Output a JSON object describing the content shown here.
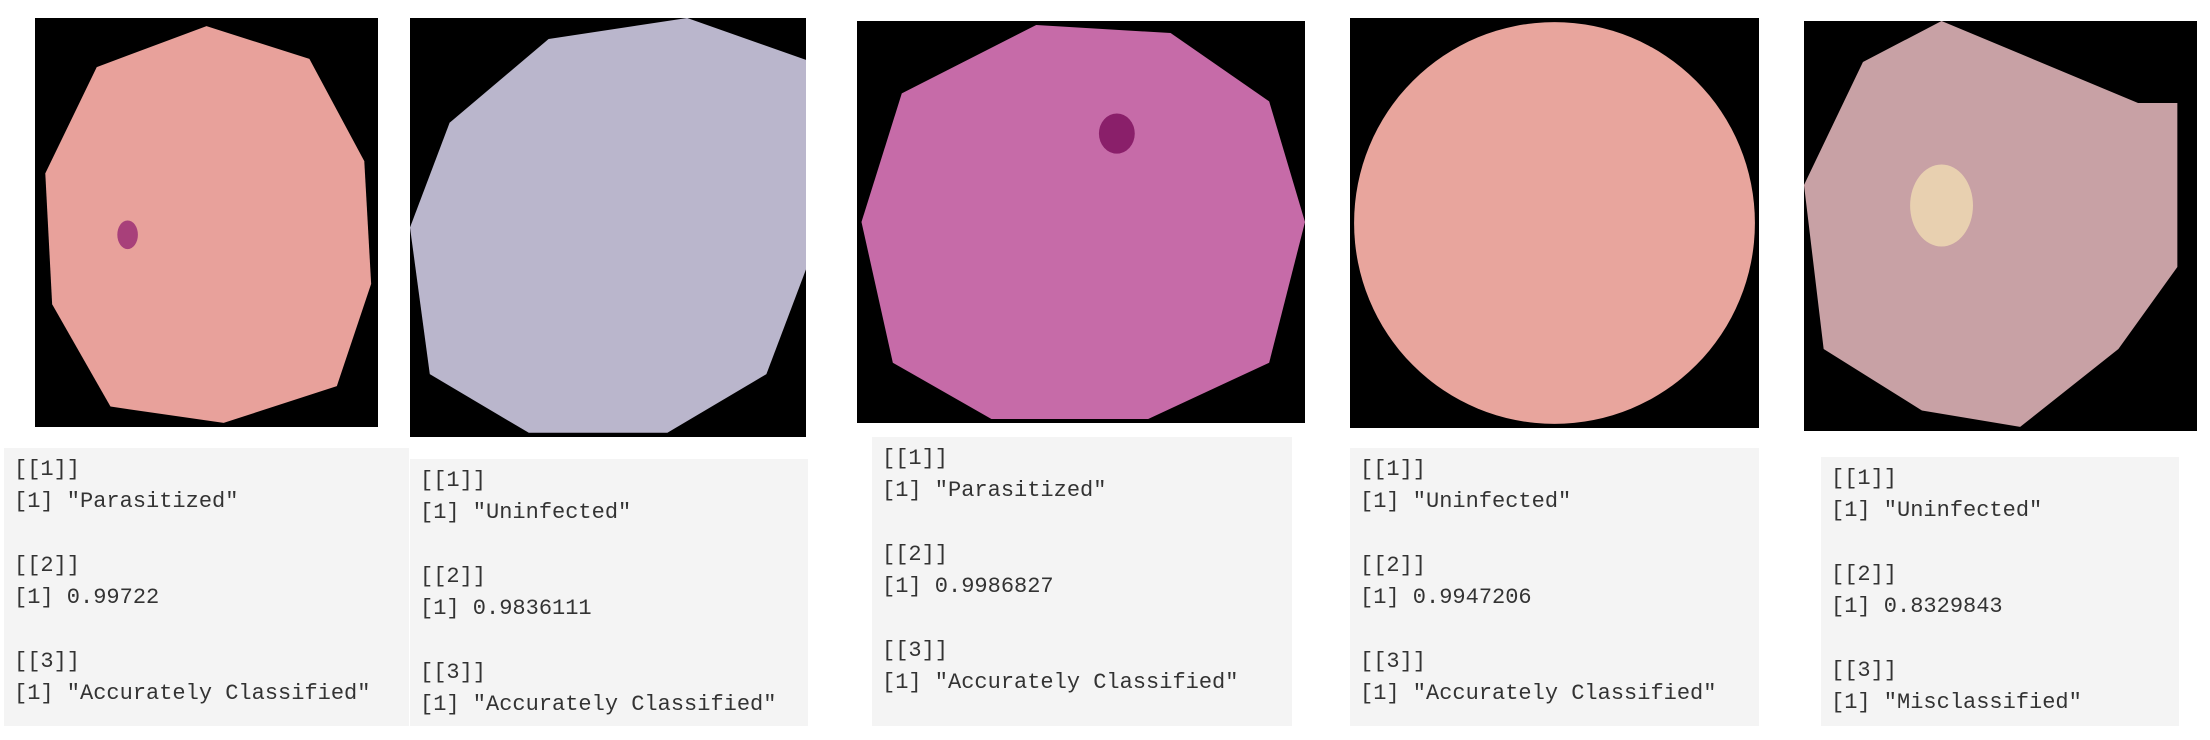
{
  "panels": [
    {
      "lines": [
        "[[1]]",
        "[1] \"Parasitized\"",
        "[[2]]",
        "[1] 0.99722",
        "[[3]]",
        "[1] \"Accurately Classified\""
      ]
    },
    {
      "lines": [
        "[[1]]",
        "[1] \"Uninfected\"",
        "[[2]]",
        "[1] 0.9836111",
        "[[3]]",
        "[1] \"Accurately Classified\""
      ]
    },
    {
      "lines": [
        "[[1]]",
        "[1] \"Parasitized\"",
        "[[2]]",
        "[1] 0.9986827",
        "[[3]]",
        "[1] \"Accurately Classified\""
      ]
    },
    {
      "lines": [
        "[[1]]",
        "[1] \"Uninfected\"",
        "[[2]]",
        "[1] 0.9947206",
        "[[3]]",
        "[1] \"Accurately Classified\""
      ]
    },
    {
      "lines": [
        "[[1]]",
        "[1] \"Uninfected\"",
        "[[2]]",
        "[1] 0.8329843",
        "[[3]]",
        "[1] \"Misclassified\""
      ]
    }
  ]
}
